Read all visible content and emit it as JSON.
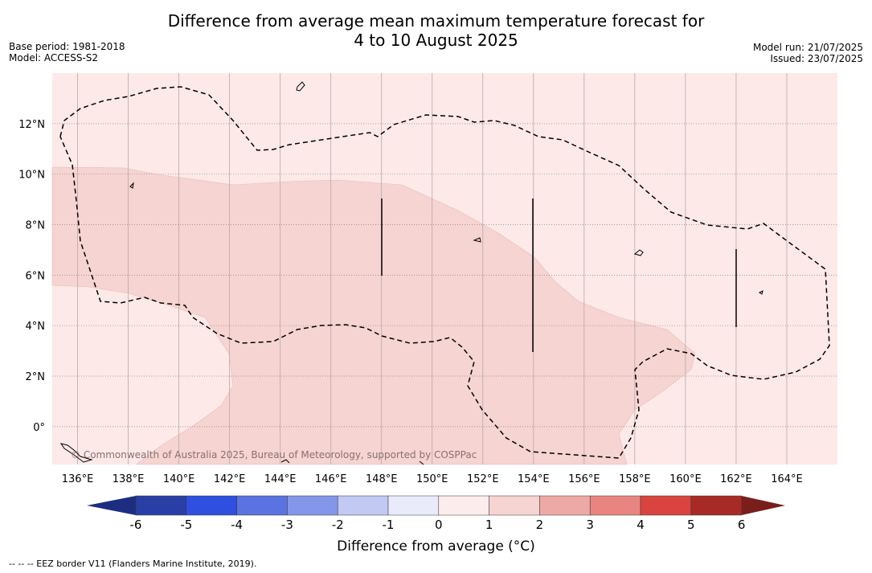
{
  "title": {
    "line1": "Difference from average mean maximum temperature forecast for",
    "line2": "4 to 10 August 2025"
  },
  "meta": {
    "base_period": "Base period: 1981-2018",
    "model": "Model: ACCESS-S2",
    "model_run": "Model run: 21/07/2025",
    "issued": "Issued: 23/07/2025"
  },
  "map": {
    "lon_range": [
      135,
      166
    ],
    "lat_range": [
      -1.5,
      14
    ],
    "lon_ticks": [
      "136°E",
      "138°E",
      "140°E",
      "142°E",
      "144°E",
      "146°E",
      "148°E",
      "150°E",
      "152°E",
      "154°E",
      "156°E",
      "158°E",
      "160°E",
      "162°E",
      "164°E"
    ],
    "lat_ticks": [
      "12°N",
      "10°N",
      "8°N",
      "6°N",
      "4°N",
      "2°N",
      "0°"
    ],
    "copyright": "© Commonwealth of Australia 2025, Bureau of Meteorology, supported by COSPPac",
    "colors": {
      "band_0_1": "#fde9e8",
      "band_1_2": "#f5d4d2",
      "grid": "#b8a8a8",
      "eez": "#000000"
    }
  },
  "colorbar": {
    "ticks": [
      "-6",
      "-5",
      "-4",
      "-3",
      "-2",
      "-1",
      "0",
      "1",
      "2",
      "3",
      "4",
      "5",
      "6"
    ],
    "colors": [
      "#2a3fa5",
      "#2f4fe0",
      "#5a73e0",
      "#8496ea",
      "#c2c9f2",
      "#e9ebfb",
      "#fdecec",
      "#f5d4d2",
      "#eda9a5",
      "#e88580",
      "#d94440",
      "#a82a27"
    ],
    "under_color": "#1d2d80",
    "over_color": "#7a1e1c",
    "label": "Difference from average (°C)"
  },
  "footnote": "-- -- -- EEZ border V11 (Flanders Marine Institute, 2019)."
}
